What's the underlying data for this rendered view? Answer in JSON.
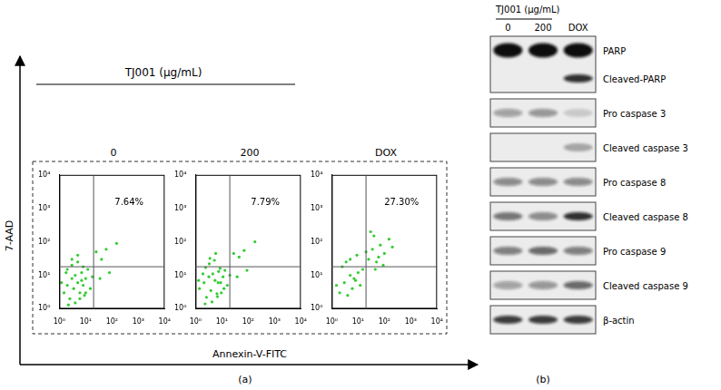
{
  "chart_data": [
    {
      "type": "scatter",
      "title": "0",
      "annotation": "7.64%",
      "gate": {
        "x": 20,
        "y": 18
      },
      "log": true,
      "grid": false,
      "color": "#33cc33",
      "xlim": [
        1,
        10000
      ],
      "ylim": [
        1,
        10000
      ],
      "xticks": [
        {
          "value": 1,
          "label": "10⁰"
        },
        {
          "value": 10,
          "label": "10¹"
        },
        {
          "value": 100,
          "label": "10²"
        },
        {
          "value": 1000,
          "label": "10³"
        },
        {
          "value": 10000,
          "label": "10⁴"
        }
      ],
      "yticks": [
        {
          "value": 1,
          "label": "10⁰"
        },
        {
          "value": 10,
          "label": "10¹"
        },
        {
          "value": 100,
          "label": "10²"
        },
        {
          "value": 1000,
          "label": "10³"
        },
        {
          "value": 10000,
          "label": "10⁴"
        }
      ],
      "x": [
        1.5,
        2,
        2.5,
        3,
        3.5,
        4,
        5,
        6,
        7,
        8,
        10,
        12,
        15,
        18,
        2,
        3,
        4,
        5,
        6,
        8,
        10,
        1.2,
        1.8,
        2.2,
        3,
        5,
        7,
        9,
        40,
        60,
        80,
        25,
        35,
        150
      ],
      "values": [
        3,
        5,
        2,
        8,
        4,
        10,
        6,
        3,
        12,
        5,
        8,
        15,
        4,
        9,
        15,
        20,
        1.5,
        25,
        2,
        18,
        3,
        6,
        12,
        1.3,
        30,
        40,
        7,
        2.5,
        30,
        60,
        12,
        50,
        8,
        90
      ]
    },
    {
      "type": "scatter",
      "title": "200",
      "annotation": "7.79%",
      "gate": {
        "x": 20,
        "y": 18
      },
      "log": true,
      "grid": false,
      "color": "#33cc33",
      "xlim": [
        1,
        10000
      ],
      "ylim": [
        1,
        10000
      ],
      "xticks": [
        {
          "value": 1,
          "label": "10⁰"
        },
        {
          "value": 10,
          "label": "10¹"
        },
        {
          "value": 100,
          "label": "10²"
        },
        {
          "value": 1000,
          "label": "10³"
        },
        {
          "value": 10000,
          "label": "10⁴"
        }
      ],
      "yticks": [
        {
          "value": 1,
          "label": "10⁰"
        },
        {
          "value": 10,
          "label": "10¹"
        },
        {
          "value": 100,
          "label": "10²"
        },
        {
          "value": 1000,
          "label": "10³"
        },
        {
          "value": 10000,
          "label": "10⁴"
        }
      ],
      "x": [
        1.4,
        2.1,
        2.6,
        3.2,
        3.8,
        4.5,
        5.5,
        6.5,
        7.5,
        9,
        11,
        13,
        16,
        20,
        2.4,
        3.3,
        4.2,
        5.2,
        6.8,
        8.5,
        12,
        1.3,
        1.9,
        2.3,
        3.5,
        5.8,
        7.2,
        9.5,
        45,
        70,
        90,
        28,
        38,
        180
      ],
      "values": [
        4,
        6,
        2.2,
        9,
        3.5,
        11,
        7,
        2.8,
        13,
        6,
        9,
        14,
        5,
        10,
        17,
        22,
        1.6,
        28,
        2.3,
        16,
        4,
        7,
        11,
        1.4,
        32,
        45,
        6,
        3,
        35,
        55,
        14,
        45,
        9,
        100
      ]
    },
    {
      "type": "scatter",
      "title": "DOX",
      "annotation": "27.30%",
      "gate": {
        "x": 20,
        "y": 18
      },
      "log": true,
      "grid": false,
      "color": "#33cc33",
      "xlim": [
        1,
        10000
      ],
      "ylim": [
        1,
        10000
      ],
      "xticks": [
        {
          "value": 1,
          "label": "10⁰"
        },
        {
          "value": 10,
          "label": "10¹"
        },
        {
          "value": 100,
          "label": "10²"
        },
        {
          "value": 1000,
          "label": "10³"
        },
        {
          "value": 10000,
          "label": "10⁴"
        }
      ],
      "yticks": [
        {
          "value": 1,
          "label": "10⁰"
        },
        {
          "value": 10,
          "label": "10¹"
        },
        {
          "value": 100,
          "label": "10²"
        },
        {
          "value": 1000,
          "label": "10³"
        },
        {
          "value": 10000,
          "label": "10⁴"
        }
      ],
      "x": [
        2,
        3,
        4,
        5,
        6,
        8,
        10,
        12,
        15,
        2.5,
        3.5,
        5,
        7,
        9,
        25,
        35,
        50,
        70,
        100,
        150,
        40,
        60,
        90,
        30,
        200,
        1.5,
        20,
        45
      ],
      "values": [
        3,
        6,
        2.5,
        10,
        4,
        7,
        12,
        5,
        15,
        18,
        25,
        30,
        8,
        40,
        30,
        60,
        25,
        80,
        45,
        120,
        150,
        35,
        20,
        200,
        70,
        5,
        50,
        15
      ]
    }
  ],
  "panel_a": {
    "label": "(a)",
    "header": "TJ001 (μg/mL)",
    "x_label": "Annexin-V-FITC",
    "y_label": "7-AAD"
  },
  "panel_b": {
    "label": "(b)",
    "header": "TJ001 (μg/mL)",
    "lanes": [
      "0",
      "200",
      "DOX"
    ],
    "blots": [
      {
        "rows": [
          {
            "label": "PARP",
            "intensity": [
              1,
              1,
              1
            ]
          },
          {
            "label": "Cleaved-PARP",
            "intensity": [
              0,
              0,
              0.85
            ]
          }
        ]
      },
      {
        "rows": [
          {
            "label": "Pro caspase 3",
            "intensity": [
              0.35,
              0.4,
              0.15
            ]
          }
        ]
      },
      {
        "rows": [
          {
            "label": "Cleaved caspase 3",
            "intensity": [
              0,
              0,
              0.3
            ]
          }
        ]
      },
      {
        "rows": [
          {
            "label": "Pro caspase 8",
            "intensity": [
              0.45,
              0.45,
              0.45
            ]
          }
        ]
      },
      {
        "rows": [
          {
            "label": "Cleaved caspase 8",
            "intensity": [
              0.55,
              0.45,
              0.85
            ]
          }
        ]
      },
      {
        "rows": [
          {
            "label": "Pro caspase 9",
            "intensity": [
              0.5,
              0.6,
              0.5
            ]
          }
        ]
      },
      {
        "rows": [
          {
            "label": "Cleaved caspase 9",
            "intensity": [
              0.35,
              0.4,
              0.6
            ]
          }
        ]
      },
      {
        "rows": [
          {
            "label": "β-actin",
            "intensity": [
              0.8,
              0.8,
              0.8
            ]
          }
        ]
      }
    ]
  }
}
